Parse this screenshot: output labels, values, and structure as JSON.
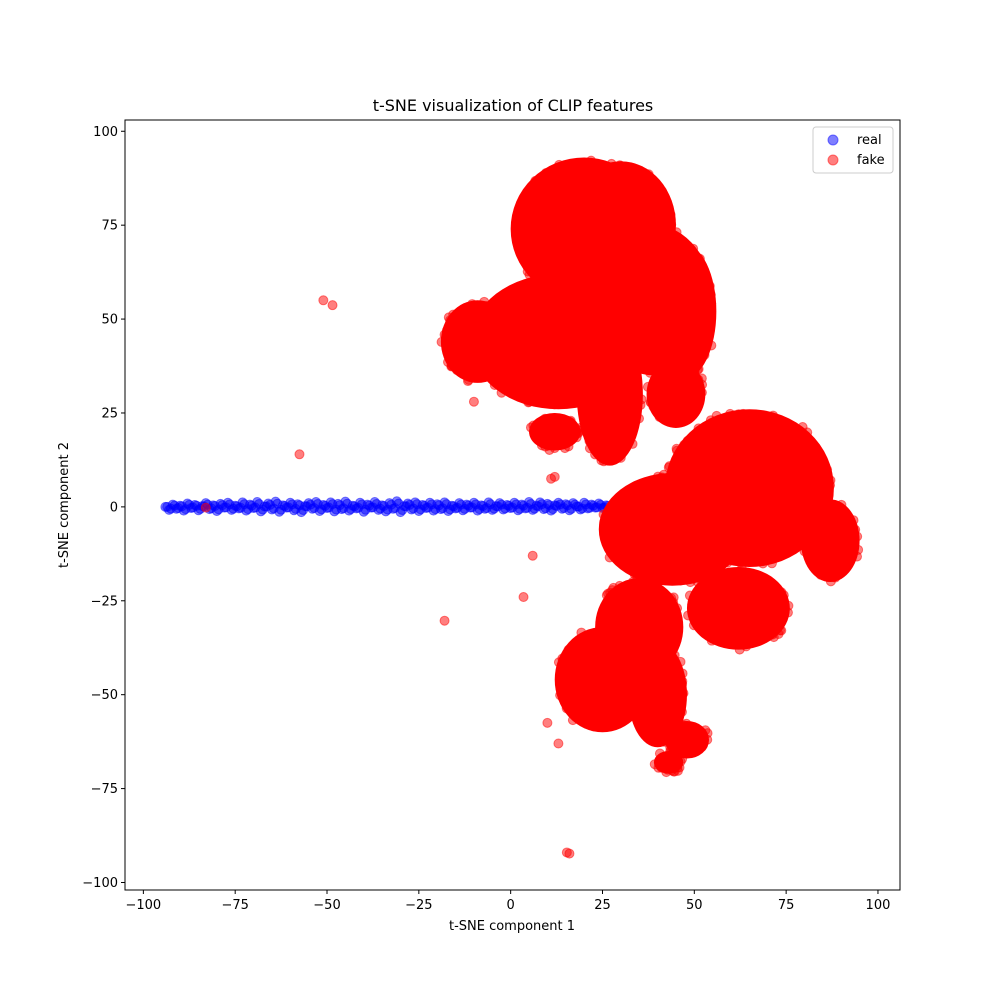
{
  "chart_data": {
    "type": "scatter",
    "title": "t-SNE visualization of CLIP features",
    "xlabel": "t-SNE component 1",
    "ylabel": "t-SNE component 2",
    "xlim": [
      -105,
      106
    ],
    "ylim": [
      -102,
      103
    ],
    "xticks": [
      -100,
      -75,
      -50,
      -25,
      0,
      25,
      50,
      75,
      100
    ],
    "yticks": [
      -100,
      -75,
      -50,
      -25,
      0,
      25,
      50,
      75,
      100
    ],
    "grid": false,
    "legend_position": "top-right",
    "marker_alpha": 0.5,
    "series": [
      {
        "name": "real",
        "color": "#0000ff",
        "points": [
          [
            -94,
            0
          ],
          [
            -93,
            -0.8
          ],
          [
            -92,
            0.6
          ],
          [
            -91,
            -0.5
          ],
          [
            -90,
            0.3
          ],
          [
            -89,
            -1
          ],
          [
            -88,
            0.9
          ],
          [
            -87,
            -0.3
          ],
          [
            -86,
            0.5
          ],
          [
            -85,
            -0.9
          ],
          [
            -84,
            0.2
          ],
          [
            -83,
            1
          ],
          [
            -82,
            -0.6
          ],
          [
            -81,
            0.4
          ],
          [
            -80,
            -1.1
          ],
          [
            -79,
            0.8
          ],
          [
            -78,
            -0.2
          ],
          [
            -77,
            1.1
          ],
          [
            -76,
            -0.8
          ],
          [
            -75,
            0.3
          ],
          [
            -74,
            -0.4
          ],
          [
            -73,
            1.2
          ],
          [
            -72,
            -1
          ],
          [
            -71,
            0.6
          ],
          [
            -70,
            -0.3
          ],
          [
            -69,
            1.3
          ],
          [
            -68,
            -1.2
          ],
          [
            -67,
            0.1
          ],
          [
            -66,
            0.9
          ],
          [
            -65,
            -0.7
          ],
          [
            -64,
            1.4
          ],
          [
            -63,
            -1.3
          ],
          [
            -62,
            0.4
          ],
          [
            -61,
            -0.2
          ],
          [
            -60,
            1.1
          ],
          [
            -59,
            -0.9
          ],
          [
            -58,
            0.7
          ],
          [
            -57,
            -1.4
          ],
          [
            -56,
            0.2
          ],
          [
            -55,
            1
          ],
          [
            -54,
            -0.5
          ],
          [
            -53,
            1.3
          ],
          [
            -52,
            -1.1
          ],
          [
            -51,
            0.5
          ],
          [
            -50,
            -0.3
          ],
          [
            -49,
            1.2
          ],
          [
            -48,
            -1.2
          ],
          [
            -47,
            0.8
          ],
          [
            -46,
            -0.6
          ],
          [
            -45,
            1.4
          ],
          [
            -44,
            -1
          ],
          [
            -43,
            0.3
          ],
          [
            -42,
            -0.4
          ],
          [
            -41,
            1.1
          ],
          [
            -40,
            -1.3
          ],
          [
            -39,
            0.6
          ],
          [
            -38,
            -0.2
          ],
          [
            -37,
            1.3
          ],
          [
            -36,
            -0.8
          ],
          [
            -35,
            0.4
          ],
          [
            -34,
            -1.2
          ],
          [
            -33,
            1
          ],
          [
            -32,
            -0.5
          ],
          [
            -31,
            1.5
          ],
          [
            -30,
            -1.4
          ],
          [
            -29,
            0.2
          ],
          [
            -28,
            0.9
          ],
          [
            -27,
            -0.7
          ],
          [
            -26,
            1.2
          ],
          [
            -25,
            -1.1
          ],
          [
            -24,
            0.5
          ],
          [
            -23,
            -0.3
          ],
          [
            -22,
            1.1
          ],
          [
            -21,
            -1
          ],
          [
            -20,
            0.7
          ],
          [
            -19,
            -0.6
          ],
          [
            -18,
            1.2
          ],
          [
            -17,
            -1.1
          ],
          [
            -16,
            0.3
          ],
          [
            -15,
            -0.4
          ],
          [
            -14,
            1
          ],
          [
            -13,
            -0.9
          ],
          [
            -12,
            0.6
          ],
          [
            -11,
            -0.2
          ],
          [
            -10,
            1.1
          ],
          [
            -9,
            -1
          ],
          [
            -8,
            0.4
          ],
          [
            -7,
            -0.5
          ],
          [
            -6,
            1.2
          ],
          [
            -5,
            -0.8
          ],
          [
            -4,
            0.2
          ],
          [
            -3,
            1
          ],
          [
            -2,
            -0.7
          ],
          [
            -1,
            0.5
          ],
          [
            0,
            -0.3
          ],
          [
            1,
            1.1
          ],
          [
            2,
            -0.9
          ],
          [
            3,
            0.6
          ],
          [
            4,
            -0.4
          ],
          [
            5,
            1.3
          ],
          [
            6,
            -0.8
          ],
          [
            7,
            0.3
          ],
          [
            8,
            1.2
          ],
          [
            9,
            -0.6
          ],
          [
            10,
            0.8
          ],
          [
            11,
            -1
          ],
          [
            12,
            0.4
          ],
          [
            13,
            1.1
          ],
          [
            14,
            -0.5
          ],
          [
            15,
            0.7
          ],
          [
            16,
            -0.9
          ],
          [
            17,
            1
          ],
          [
            18,
            0.1
          ],
          [
            19,
            -0.7
          ],
          [
            20,
            1.1
          ],
          [
            21,
            -0.4
          ],
          [
            22,
            0.6
          ],
          [
            23,
            -0.2
          ],
          [
            24,
            0.9
          ],
          [
            25,
            -0.3
          ],
          [
            26,
            0.4
          ]
        ]
      },
      {
        "name": "fake",
        "color": "#ff0000",
        "regions": [
          {
            "cx": 20,
            "cy": 74,
            "rx": 20,
            "ry": 19
          },
          {
            "cx": 30,
            "cy": 75,
            "rx": 15,
            "ry": 17
          },
          {
            "cx": 39,
            "cy": 55,
            "rx": 16,
            "ry": 20
          },
          {
            "cx": 13,
            "cy": 44,
            "rx": 24,
            "ry": 18
          },
          {
            "cx": -9,
            "cy": 44,
            "rx": 10,
            "ry": 11
          },
          {
            "cx": 12,
            "cy": 20,
            "rx": 7,
            "ry": 5
          },
          {
            "cx": 27,
            "cy": 30,
            "rx": 9,
            "ry": 19
          },
          {
            "cx": 47,
            "cy": 52,
            "rx": 9,
            "ry": 18
          },
          {
            "cx": 45,
            "cy": 30,
            "rx": 8,
            "ry": 9
          },
          {
            "cx": 65,
            "cy": 5,
            "rx": 23,
            "ry": 21
          },
          {
            "cx": 87,
            "cy": -9,
            "rx": 8,
            "ry": 11
          },
          {
            "cx": 44,
            "cy": -6,
            "rx": 20,
            "ry": 15
          },
          {
            "cx": 62,
            "cy": -27,
            "rx": 14,
            "ry": 11
          },
          {
            "cx": 35,
            "cy": -32,
            "rx": 12,
            "ry": 13
          },
          {
            "cx": 25,
            "cy": -46,
            "rx": 13,
            "ry": 14
          },
          {
            "cx": 40,
            "cy": -50,
            "rx": 8,
            "ry": 14
          },
          {
            "cx": 48,
            "cy": -62,
            "rx": 6,
            "ry": 5
          },
          {
            "cx": 43,
            "cy": -68,
            "rx": 4,
            "ry": 3
          }
        ],
        "points": [
          [
            -51,
            55
          ],
          [
            -48.5,
            53.7
          ],
          [
            -57.5,
            14
          ],
          [
            -83,
            -0.2
          ],
          [
            -18,
            -30.3
          ],
          [
            3.5,
            -24
          ],
          [
            6,
            -13
          ],
          [
            10,
            -57.5
          ],
          [
            13,
            -63
          ],
          [
            15.3,
            -92
          ],
          [
            16,
            -92.3
          ],
          [
            -10,
            28
          ],
          [
            12,
            8
          ],
          [
            11,
            7.5
          ]
        ]
      }
    ]
  }
}
